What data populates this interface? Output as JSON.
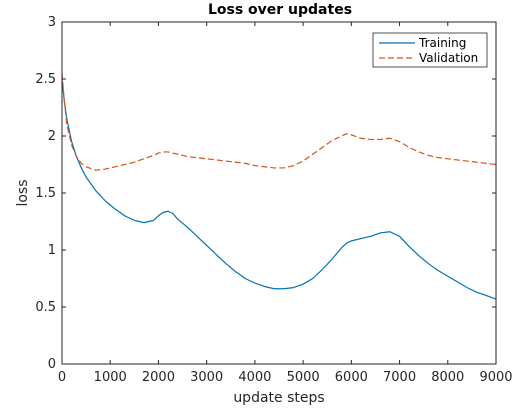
{
  "chart_data": {
    "type": "line",
    "title": "Loss over updates",
    "xlabel": "update steps",
    "ylabel": "loss",
    "xlim": [
      0,
      9000
    ],
    "ylim": [
      0,
      3
    ],
    "xticks": [
      0,
      1000,
      2000,
      3000,
      4000,
      5000,
      6000,
      7000,
      8000,
      9000
    ],
    "yticks": [
      0,
      0.5,
      1,
      1.5,
      2,
      2.5,
      3
    ],
    "ytick_labels": [
      "0",
      "0.5",
      "1",
      "1.5",
      "2",
      "2.5",
      "3"
    ],
    "grid": false,
    "legend_position": "top-right",
    "series": [
      {
        "name": "Training",
        "color": "#0072BD",
        "style": "solid",
        "x": [
          0,
          50,
          100,
          200,
          300,
          400,
          500,
          700,
          900,
          1100,
          1300,
          1500,
          1700,
          1900,
          2000,
          2100,
          2200,
          2300,
          2400,
          2600,
          2800,
          3000,
          3200,
          3400,
          3600,
          3800,
          4000,
          4200,
          4400,
          4600,
          4800,
          5000,
          5200,
          5400,
          5600,
          5800,
          5900,
          6000,
          6200,
          6400,
          6600,
          6800,
          7000,
          7200,
          7400,
          7600,
          7800,
          8000,
          8200,
          8400,
          8600,
          8800,
          9000
        ],
        "values": [
          2.5,
          2.3,
          2.15,
          1.95,
          1.82,
          1.72,
          1.64,
          1.52,
          1.43,
          1.36,
          1.3,
          1.26,
          1.24,
          1.26,
          1.3,
          1.33,
          1.34,
          1.32,
          1.27,
          1.2,
          1.12,
          1.04,
          0.96,
          0.88,
          0.81,
          0.75,
          0.71,
          0.68,
          0.66,
          0.66,
          0.67,
          0.7,
          0.75,
          0.83,
          0.92,
          1.02,
          1.06,
          1.08,
          1.1,
          1.12,
          1.15,
          1.16,
          1.12,
          1.03,
          0.95,
          0.88,
          0.82,
          0.77,
          0.72,
          0.67,
          0.63,
          0.6,
          0.57
        ]
      },
      {
        "name": "Validation",
        "color": "#D95319",
        "style": "dashed",
        "x": [
          0,
          50,
          100,
          200,
          300,
          400,
          500,
          700,
          900,
          1100,
          1300,
          1500,
          1700,
          1900,
          2000,
          2100,
          2200,
          2300,
          2400,
          2600,
          2800,
          3000,
          3200,
          3400,
          3600,
          3800,
          4000,
          4200,
          4400,
          4600,
          4800,
          5000,
          5200,
          5400,
          5600,
          5800,
          5900,
          6000,
          6200,
          6400,
          6600,
          6800,
          7000,
          7200,
          7400,
          7600,
          7800,
          8000,
          8200,
          8400,
          8600,
          8800,
          9000
        ],
        "values": [
          2.55,
          2.3,
          2.1,
          1.92,
          1.82,
          1.76,
          1.73,
          1.7,
          1.71,
          1.73,
          1.75,
          1.77,
          1.8,
          1.83,
          1.85,
          1.86,
          1.86,
          1.85,
          1.84,
          1.82,
          1.81,
          1.8,
          1.79,
          1.78,
          1.77,
          1.76,
          1.74,
          1.73,
          1.72,
          1.72,
          1.74,
          1.78,
          1.84,
          1.9,
          1.96,
          2.0,
          2.02,
          2.01,
          1.98,
          1.97,
          1.97,
          1.98,
          1.95,
          1.9,
          1.86,
          1.83,
          1.81,
          1.8,
          1.79,
          1.78,
          1.77,
          1.76,
          1.75
        ]
      }
    ]
  }
}
